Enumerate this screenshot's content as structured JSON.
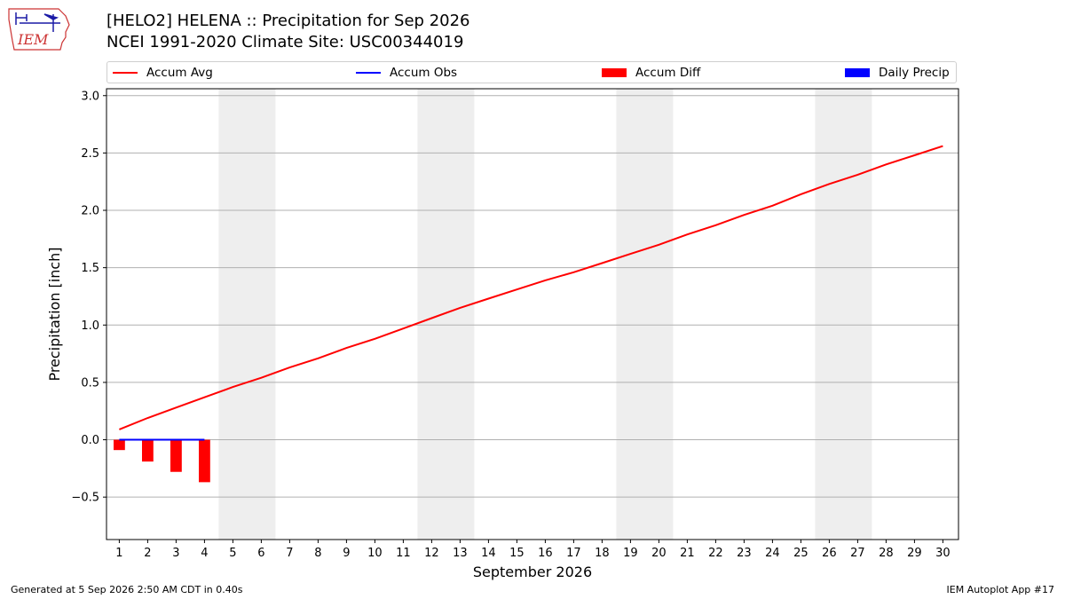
{
  "header": {
    "logo_text": "IEM",
    "title_line1": "[HELO2] HELENA :: Precipitation for Sep 2026",
    "title_line2": "NCEI 1991-2020 Climate Site: USC00344019"
  },
  "legend": {
    "items": [
      {
        "label": "Accum Avg",
        "kind": "line",
        "color": "#ff0000"
      },
      {
        "label": "Accum Obs",
        "kind": "line",
        "color": "#0000ff"
      },
      {
        "label": "Accum Diff",
        "kind": "box",
        "color": "#ff0000"
      },
      {
        "label": "Daily Precip",
        "kind": "box",
        "color": "#0000ff"
      }
    ]
  },
  "footer": {
    "left": "Generated at 5 Sep 2026 2:50 AM CDT in 0.40s",
    "right": "IEM Autoplot App #17"
  },
  "chart_data": {
    "type": "line",
    "xlabel": "September 2026",
    "ylabel": "Precipitation [inch]",
    "x_ticks": [
      1,
      2,
      3,
      4,
      5,
      6,
      7,
      8,
      9,
      10,
      11,
      12,
      13,
      14,
      15,
      16,
      17,
      18,
      19,
      20,
      21,
      22,
      23,
      24,
      25,
      26,
      27,
      28,
      29,
      30
    ],
    "y_ticks": [
      -0.5,
      0.0,
      0.5,
      1.0,
      1.5,
      2.0,
      2.5,
      3.0
    ],
    "y_tick_labels": [
      "−0.5",
      "0.0",
      "0.5",
      "1.0",
      "1.5",
      "2.0",
      "2.5",
      "3.0"
    ],
    "xlim": [
      0.55,
      30.55
    ],
    "ylim": [
      -0.87,
      3.06
    ],
    "grid": "horizontal",
    "weekend_shading": [
      [
        4.5,
        6.5
      ],
      [
        11.5,
        13.5
      ],
      [
        18.5,
        20.5
      ],
      [
        25.5,
        27.5
      ]
    ],
    "series": [
      {
        "name": "Accum Avg",
        "kind": "line",
        "color": "#ff0000",
        "x": [
          1,
          2,
          3,
          4,
          5,
          6,
          7,
          8,
          9,
          10,
          11,
          12,
          13,
          14,
          15,
          16,
          17,
          18,
          19,
          20,
          21,
          22,
          23,
          24,
          25,
          26,
          27,
          28,
          29,
          30
        ],
        "values": [
          0.09,
          0.19,
          0.28,
          0.37,
          0.46,
          0.54,
          0.63,
          0.71,
          0.8,
          0.88,
          0.97,
          1.06,
          1.15,
          1.23,
          1.31,
          1.39,
          1.46,
          1.54,
          1.62,
          1.7,
          1.79,
          1.87,
          1.96,
          2.04,
          2.14,
          2.23,
          2.31,
          2.4,
          2.48,
          2.56
        ]
      },
      {
        "name": "Accum Obs",
        "kind": "line",
        "color": "#0000ff",
        "x": [
          1,
          2,
          3,
          4
        ],
        "values": [
          0.0,
          0.0,
          0.0,
          0.0
        ]
      },
      {
        "name": "Accum Diff",
        "kind": "bar",
        "color": "#ff0000",
        "x": [
          1,
          2,
          3,
          4
        ],
        "values": [
          -0.09,
          -0.19,
          -0.28,
          -0.37
        ]
      },
      {
        "name": "Daily Precip",
        "kind": "bar",
        "color": "#0000ff",
        "x": [
          1,
          2,
          3,
          4
        ],
        "values": [
          0.0,
          0.0,
          0.0,
          0.0
        ]
      }
    ]
  }
}
